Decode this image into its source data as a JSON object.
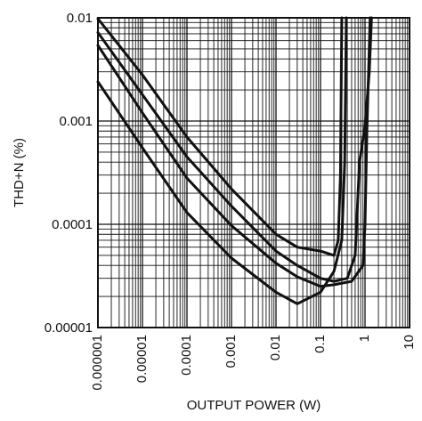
{
  "chart_data": {
    "type": "line",
    "title": "",
    "xlabel": "OUTPUT POWER (W)",
    "ylabel": "THD+N (%)",
    "xscale": "log",
    "yscale": "log",
    "xlim": [
      1e-06,
      10
    ],
    "ylim": [
      1e-05,
      0.01
    ],
    "grid": true,
    "legend": "none",
    "x_ticks": [
      "0.000001",
      "0.00001",
      "0.0001",
      "0.001",
      "0.01",
      "0.1",
      "1",
      "10"
    ],
    "y_ticks": [
      "0.01",
      "0.001",
      "0.0001",
      "0.00001"
    ],
    "series": [
      {
        "color": "#111111",
        "points": [
          [
            1e-06,
            0.0024
          ],
          [
            1e-05,
            0.00055
          ],
          [
            0.0001,
            0.00013
          ],
          [
            0.001,
            4.7e-05
          ],
          [
            0.01,
            2.2e-05
          ],
          [
            0.03,
            1.7e-05
          ],
          [
            0.1,
            2.2e-05
          ],
          [
            0.2,
            3.5e-05
          ],
          [
            0.3,
            7e-05
          ],
          [
            0.35,
            0.0004
          ],
          [
            0.38,
            0.01
          ]
        ]
      },
      {
        "color": "#111111",
        "points": [
          [
            1e-06,
            0.0054
          ],
          [
            1e-05,
            0.0012
          ],
          [
            0.0001,
            0.00028
          ],
          [
            0.001,
            9.7e-05
          ],
          [
            0.01,
            4.2e-05
          ],
          [
            0.03,
            3.1e-05
          ],
          [
            0.1,
            2.5e-05
          ],
          [
            0.2,
            2.6e-05
          ],
          [
            0.5,
            2.8e-05
          ],
          [
            0.9,
            4e-05
          ],
          [
            1.0,
            0.0001
          ],
          [
            1.1,
            0.0008
          ],
          [
            1.2,
            0.003
          ],
          [
            1.3,
            0.01
          ]
        ]
      },
      {
        "color": "#111111",
        "points": [
          [
            1e-06,
            0.0072
          ],
          [
            1e-05,
            0.0018
          ],
          [
            0.0001,
            0.00045
          ],
          [
            0.001,
            0.00015
          ],
          [
            0.01,
            5.5e-05
          ],
          [
            0.03,
            4e-05
          ],
          [
            0.1,
            3e-05
          ],
          [
            0.2,
            2.8e-05
          ],
          [
            0.4,
            3e-05
          ],
          [
            0.6,
            5e-05
          ],
          [
            0.75,
            0.0004
          ],
          [
            1.0,
            0.0009
          ],
          [
            1.25,
            0.003
          ],
          [
            1.4,
            0.01
          ]
        ]
      },
      {
        "color": "#111111",
        "points": [
          [
            1e-06,
            0.0098
          ],
          [
            1e-05,
            0.0028
          ],
          [
            0.0001,
            0.0007
          ],
          [
            0.001,
            0.00022
          ],
          [
            0.01,
            8e-05
          ],
          [
            0.03,
            6e-05
          ],
          [
            0.1,
            5.5e-05
          ],
          [
            0.2,
            5e-05
          ],
          [
            0.25,
            7e-05
          ],
          [
            0.28,
            0.0003
          ],
          [
            0.3,
            0.01
          ]
        ]
      }
    ]
  }
}
